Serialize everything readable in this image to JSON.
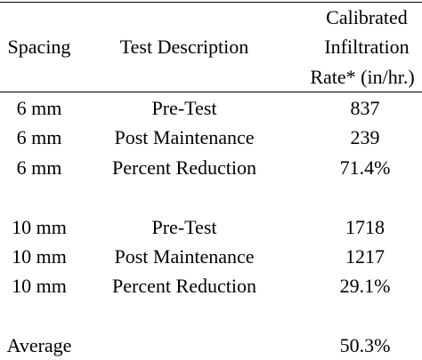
{
  "table": {
    "header": {
      "spacing": "Spacing",
      "description": "Test Description",
      "rate": [
        "Calibrated",
        "Infiltration",
        "Rate* (in/hr.)"
      ]
    },
    "groups": [
      [
        [
          "6 mm",
          "Pre-Test",
          "837"
        ],
        [
          "6 mm",
          "Post Maintenance",
          "239"
        ],
        [
          "6 mm",
          "Percent Reduction",
          "71.4%"
        ]
      ],
      [
        [
          "10 mm",
          "Pre-Test",
          "1718"
        ],
        [
          "10 mm",
          "Post Maintenance",
          "1217"
        ],
        [
          "10 mm",
          "Percent Reduction",
          "29.1%"
        ]
      ]
    ],
    "average": {
      "label": "Average",
      "value": "50.3%"
    }
  }
}
